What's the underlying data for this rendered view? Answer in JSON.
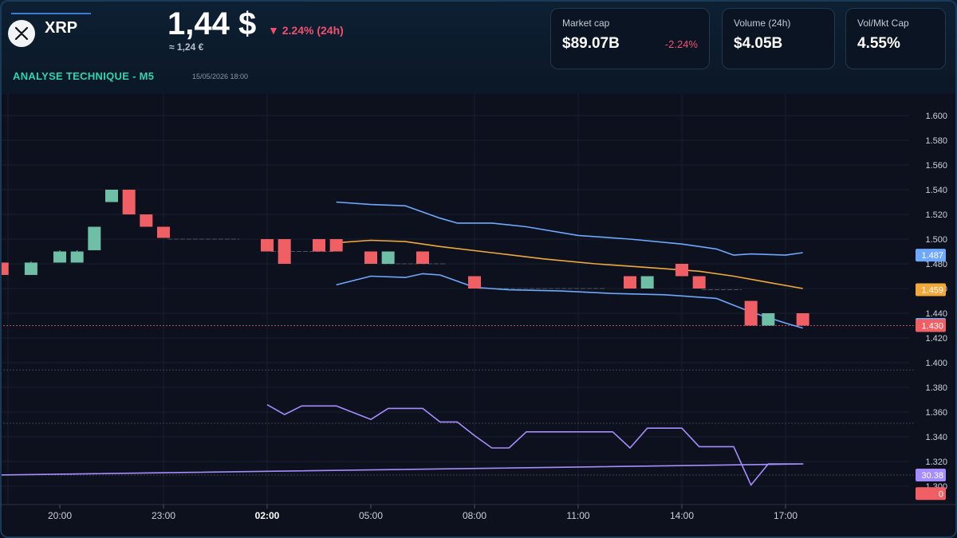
{
  "asset": {
    "symbol": "XRP",
    "price": "1,44 $",
    "change": "▼ 2.24% (24h)",
    "price_eur": "≈ 1,24 €",
    "analysis_label": "ANALYSE TECHNIQUE - M5",
    "timestamp": "15/05/2026 18:00",
    "logo_icon": "xrp-logo-icon"
  },
  "stats": [
    {
      "label": "Market cap",
      "value": "$89.07B",
      "delta": "-2.24%"
    },
    {
      "label": "Volume (24h)",
      "value": "$4.05B",
      "delta": ""
    },
    {
      "label": "Vol/Mkt Cap",
      "value": "4.55%",
      "delta": ""
    }
  ],
  "colors": {
    "up": "#6ebfa5",
    "down": "#ef5f63",
    "band": "#6ea8ff",
    "middle": "#f2a93b",
    "rsi": "#a58cff",
    "background": "#0c111d"
  },
  "chart_data": {
    "type": "candlestick",
    "x_ticks": [
      "20:00",
      "23:00",
      "02:00",
      "05:00",
      "08:00",
      "11:00",
      "14:00",
      "17:00"
    ],
    "y_ticks": [
      "1.600",
      "1.580",
      "1.560",
      "1.540",
      "1.520",
      "1.500",
      "1.480",
      "1.460",
      "1.440",
      "1.420",
      "1.400",
      "1.380",
      "1.360",
      "1.340",
      "1.320",
      "1.300"
    ],
    "ylim": [
      1.29,
      1.61
    ],
    "candles": [
      {
        "t": "18:20",
        "o": 1.481,
        "h": 1.481,
        "l": 1.471,
        "c": 1.471
      },
      {
        "t": "19:10",
        "o": 1.471,
        "h": 1.482,
        "l": 1.471,
        "c": 1.481
      },
      {
        "t": "20:00",
        "o": 1.481,
        "h": 1.491,
        "l": 1.481,
        "c": 1.49
      },
      {
        "t": "20:30",
        "o": 1.481,
        "h": 1.491,
        "l": 1.481,
        "c": 1.49
      },
      {
        "t": "21:00",
        "o": 1.491,
        "h": 1.51,
        "l": 1.491,
        "c": 1.51
      },
      {
        "t": "21:30",
        "o": 1.53,
        "h": 1.54,
        "l": 1.53,
        "c": 1.54
      },
      {
        "t": "22:00",
        "o": 1.54,
        "h": 1.54,
        "l": 1.52,
        "c": 1.52
      },
      {
        "t": "22:30",
        "o": 1.52,
        "h": 1.52,
        "l": 1.51,
        "c": 1.51
      },
      {
        "t": "23:00",
        "o": 1.51,
        "h": 1.51,
        "l": 1.501,
        "c": 1.501
      },
      {
        "t": "02:00",
        "o": 1.5,
        "h": 1.5,
        "l": 1.49,
        "c": 1.49
      },
      {
        "t": "02:30",
        "o": 1.5,
        "h": 1.5,
        "l": 1.48,
        "c": 1.48
      },
      {
        "t": "03:30",
        "o": 1.5,
        "h": 1.5,
        "l": 1.49,
        "c": 1.49
      },
      {
        "t": "04:00",
        "o": 1.5,
        "h": 1.5,
        "l": 1.49,
        "c": 1.49
      },
      {
        "t": "05:00",
        "o": 1.49,
        "h": 1.49,
        "l": 1.48,
        "c": 1.48
      },
      {
        "t": "05:30",
        "o": 1.48,
        "h": 1.49,
        "l": 1.48,
        "c": 1.49
      },
      {
        "t": "06:30",
        "o": 1.49,
        "h": 1.49,
        "l": 1.48,
        "c": 1.48
      },
      {
        "t": "08:00",
        "o": 1.47,
        "h": 1.47,
        "l": 1.46,
        "c": 1.46
      },
      {
        "t": "12:30",
        "o": 1.47,
        "h": 1.47,
        "l": 1.46,
        "c": 1.46
      },
      {
        "t": "13:00",
        "o": 1.46,
        "h": 1.47,
        "l": 1.46,
        "c": 1.47
      },
      {
        "t": "14:00",
        "o": 1.48,
        "h": 1.48,
        "l": 1.47,
        "c": 1.47
      },
      {
        "t": "14:30",
        "o": 1.47,
        "h": 1.47,
        "l": 1.46,
        "c": 1.46
      },
      {
        "t": "16:00",
        "o": 1.45,
        "h": 1.45,
        "l": 1.43,
        "c": 1.43
      },
      {
        "t": "16:30",
        "o": 1.43,
        "h": 1.44,
        "l": 1.43,
        "c": 1.44
      },
      {
        "t": "17:30",
        "o": 1.44,
        "h": 1.44,
        "l": 1.43,
        "c": 1.43
      }
    ],
    "bollinger_upper": [
      [
        "04:00",
        1.53
      ],
      [
        "05:00",
        1.528
      ],
      [
        "06:00",
        1.527
      ],
      [
        "07:00",
        1.517
      ],
      [
        "07:30",
        1.513
      ],
      [
        "08:30",
        1.513
      ],
      [
        "09:30",
        1.51
      ],
      [
        "11:00",
        1.503
      ],
      [
        "12:30",
        1.5
      ],
      [
        "14:00",
        1.496
      ],
      [
        "15:00",
        1.492
      ],
      [
        "15:30",
        1.487
      ],
      [
        "16:00",
        1.488
      ],
      [
        "17:00",
        1.487
      ],
      [
        "17:30",
        1.489
      ]
    ],
    "bollinger_middle": [
      [
        "04:00",
        1.497
      ],
      [
        "05:00",
        1.499
      ],
      [
        "06:00",
        1.498
      ],
      [
        "07:00",
        1.494
      ],
      [
        "08:30",
        1.489
      ],
      [
        "10:00",
        1.484
      ],
      [
        "11:30",
        1.48
      ],
      [
        "13:00",
        1.477
      ],
      [
        "14:30",
        1.474
      ],
      [
        "15:30",
        1.47
      ],
      [
        "16:30",
        1.465
      ],
      [
        "17:30",
        1.46
      ]
    ],
    "bollinger_lower": [
      [
        "04:00",
        1.463
      ],
      [
        "05:00",
        1.47
      ],
      [
        "06:00",
        1.469
      ],
      [
        "06:30",
        1.472
      ],
      [
        "07:00",
        1.471
      ],
      [
        "08:00",
        1.461
      ],
      [
        "09:00",
        1.459
      ],
      [
        "10:30",
        1.458
      ],
      [
        "12:00",
        1.456
      ],
      [
        "13:30",
        1.455
      ],
      [
        "14:00",
        1.454
      ],
      [
        "15:00",
        1.452
      ],
      [
        "16:00",
        1.441
      ],
      [
        "17:00",
        1.432
      ],
      [
        "17:30",
        1.428
      ]
    ],
    "rsi_line": [
      [
        "02:00",
        1.366
      ],
      [
        "02:30",
        1.358
      ],
      [
        "03:00",
        1.365
      ],
      [
        "04:00",
        1.365
      ],
      [
        "05:00",
        1.354
      ],
      [
        "05:30",
        1.363
      ],
      [
        "06:30",
        1.363
      ],
      [
        "07:00",
        1.352
      ],
      [
        "07:30",
        1.352
      ],
      [
        "08:00",
        1.341
      ],
      [
        "08:30",
        1.331
      ],
      [
        "09:00",
        1.331
      ],
      [
        "09:30",
        1.344
      ],
      [
        "10:30",
        1.344
      ],
      [
        "11:00",
        1.344
      ],
      [
        "12:00",
        1.344
      ],
      [
        "12:30",
        1.331
      ],
      [
        "13:00",
        1.347
      ],
      [
        "14:00",
        1.347
      ],
      [
        "14:30",
        1.332
      ],
      [
        "15:30",
        1.332
      ],
      [
        "16:00",
        1.301
      ],
      [
        "16:30",
        1.318
      ],
      [
        "17:30",
        1.318
      ],
      [
        "18:00",
        1.309
      ]
    ],
    "dashed_levels": [
      1.43,
      1.394,
      1.351,
      1.309
    ],
    "axis_badges": [
      {
        "value": 1.487,
        "label": "1.487",
        "color": "#6ea8ff"
      },
      {
        "value": 1.459,
        "label": "1.459",
        "color": "#f2a93b"
      },
      {
        "value": 1.431,
        "label": "1.431",
        "color": "#6ea8ff"
      },
      {
        "value": 1.43,
        "label": "1.430",
        "color": "#ef5f63"
      },
      {
        "value": 1.309,
        "label": "30.38",
        "color": "#a58cff"
      },
      {
        "value": 1.294,
        "label": "0",
        "color": "#ef5f63"
      }
    ],
    "bold_tick": "02:00",
    "grid": true
  }
}
